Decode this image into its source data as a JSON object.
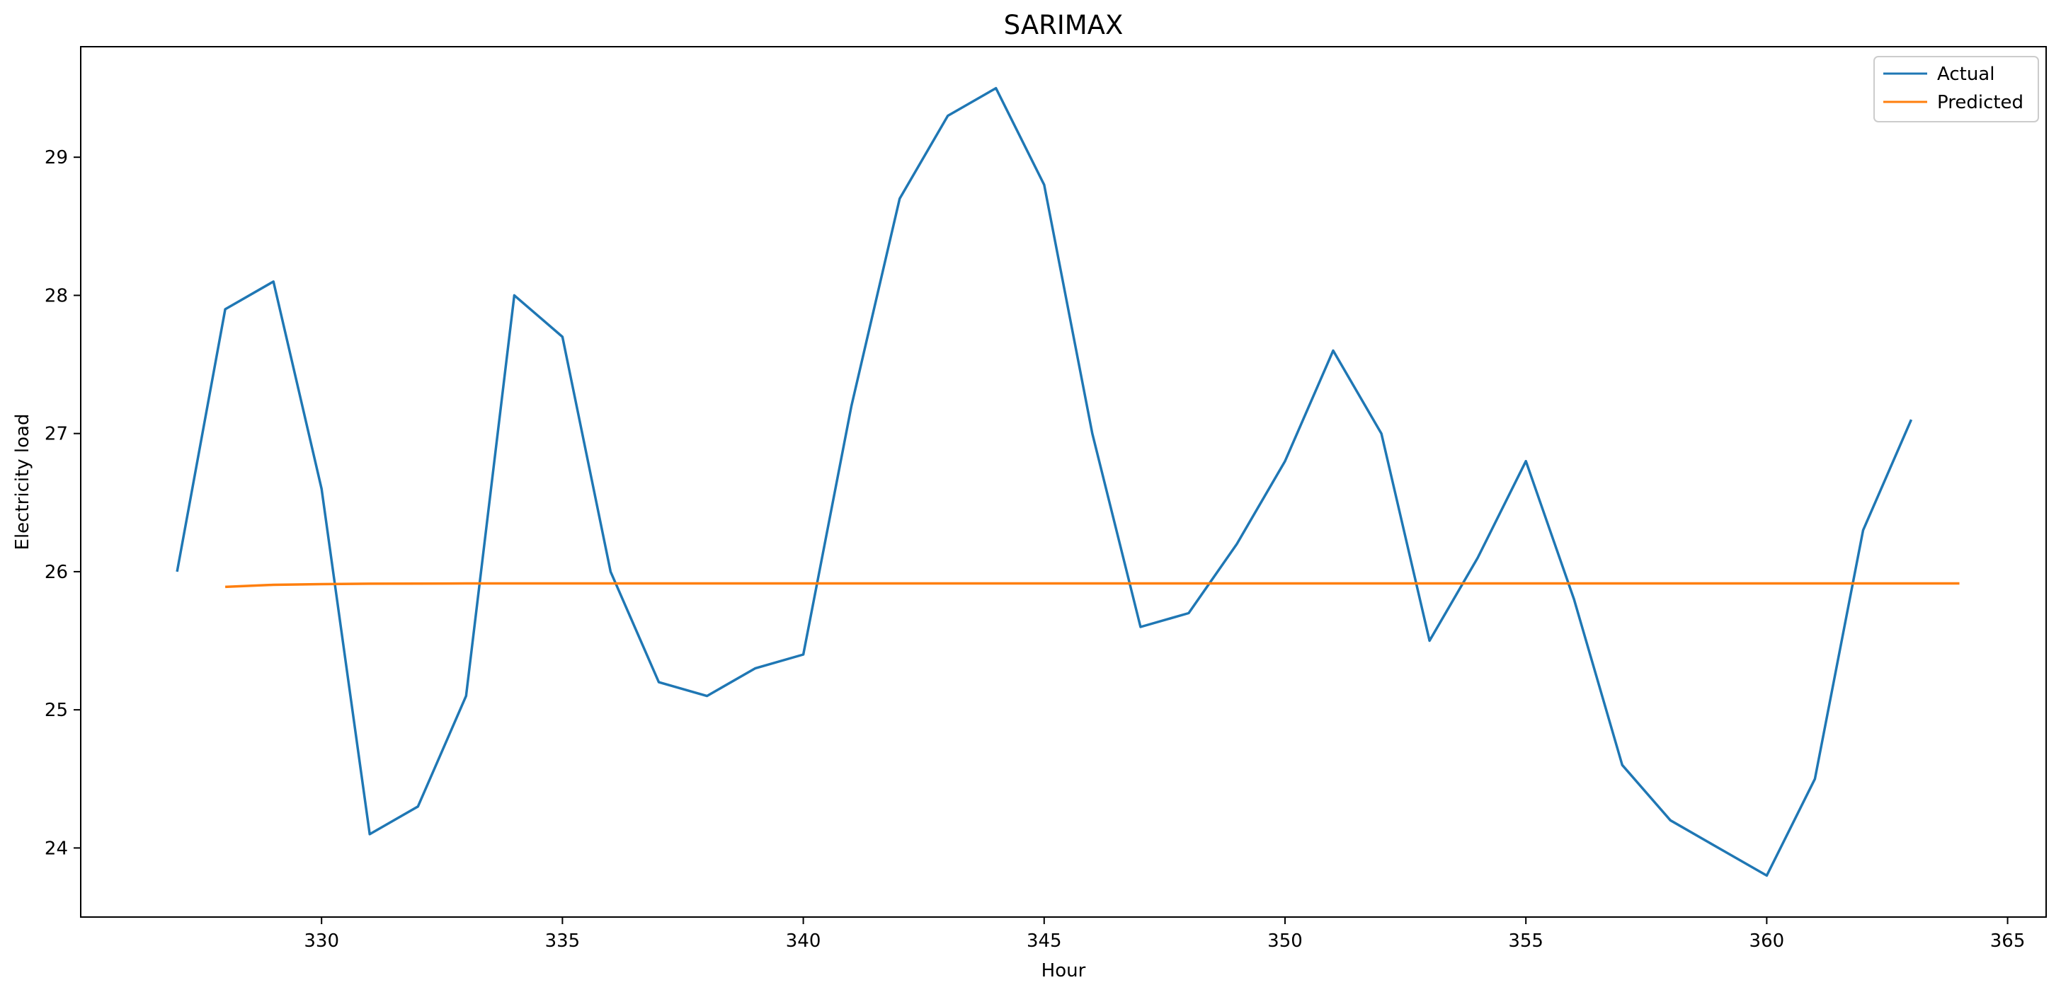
{
  "chart_data": {
    "type": "line",
    "title": "SARIMAX",
    "xlabel": "Hour",
    "ylabel": "Electricity load",
    "xlim": [
      325,
      365.8
    ],
    "ylim": [
      23.5,
      29.8
    ],
    "x_ticks": [
      330,
      335,
      340,
      345,
      350,
      355,
      360,
      365
    ],
    "y_ticks": [
      24,
      25,
      26,
      27,
      28,
      29
    ],
    "grid": false,
    "legend": "top-right",
    "series": [
      {
        "name": "Actual",
        "color": "#1f77b4",
        "x": [
          327,
          328,
          329,
          330,
          331,
          332,
          333,
          334,
          335,
          336,
          337,
          338,
          339,
          340,
          341,
          342,
          343,
          344,
          345,
          346,
          347,
          348,
          349,
          350,
          351,
          352,
          353,
          354,
          355,
          356,
          357,
          358,
          359,
          360,
          361,
          362,
          363
        ],
        "y": [
          26.0,
          27.9,
          28.1,
          26.6,
          24.1,
          24.3,
          25.1,
          28.0,
          27.7,
          26.0,
          25.2,
          25.1,
          25.3,
          25.4,
          27.2,
          28.7,
          29.3,
          29.5,
          28.8,
          27.0,
          25.6,
          25.7,
          26.2,
          26.8,
          27.6,
          27.0,
          25.5,
          26.1,
          26.8,
          25.8,
          24.6,
          24.2,
          24.0,
          23.8,
          24.5,
          26.3,
          27.1
        ]
      },
      {
        "name": "Predicted",
        "color": "#ff7f0e",
        "x": [
          328,
          329,
          330,
          331,
          332,
          333,
          334,
          335,
          336,
          337,
          338,
          339,
          340,
          341,
          342,
          343,
          344,
          345,
          346,
          347,
          348,
          349,
          350,
          351,
          352,
          353,
          354,
          355,
          356,
          357,
          358,
          359,
          360,
          361,
          362,
          363,
          364
        ],
        "y": [
          25.89,
          25.905,
          25.91,
          25.913,
          25.914,
          25.915,
          25.915,
          25.915,
          25.915,
          25.915,
          25.915,
          25.915,
          25.915,
          25.915,
          25.915,
          25.915,
          25.915,
          25.915,
          25.915,
          25.915,
          25.915,
          25.915,
          25.915,
          25.915,
          25.915,
          25.915,
          25.915,
          25.915,
          25.915,
          25.915,
          25.915,
          25.915,
          25.915,
          25.915,
          25.915,
          25.915,
          25.915
        ]
      }
    ]
  }
}
